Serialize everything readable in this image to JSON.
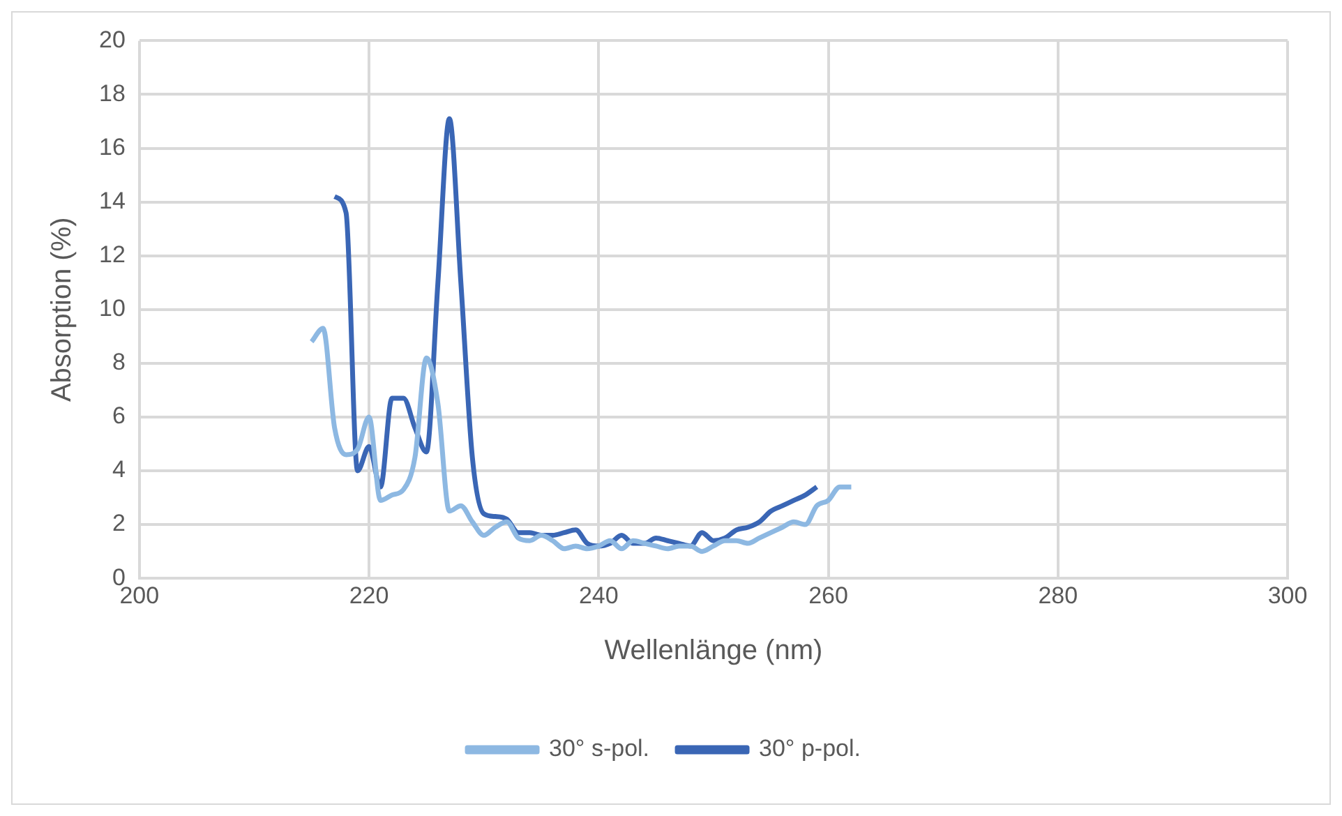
{
  "chart_data": {
    "type": "line",
    "xlabel": "Wellenlänge (nm)",
    "ylabel": "Absorption (%)",
    "xlim": [
      200,
      300
    ],
    "xticks": [
      200,
      220,
      240,
      260,
      280,
      300
    ],
    "ylim": [
      0,
      20
    ],
    "yticks": [
      0,
      2,
      4,
      6,
      8,
      10,
      12,
      14,
      16,
      18,
      20
    ],
    "grid": true,
    "legend": "bottom",
    "marker": "none",
    "series": [
      {
        "name": "30° s-pol.",
        "color": "#8db8e2",
        "x": [
          215,
          216,
          217,
          218,
          219,
          220,
          221,
          222,
          223,
          224,
          225,
          226,
          227,
          228,
          229,
          230,
          231,
          232,
          233,
          234,
          235,
          236,
          237,
          238,
          239,
          240,
          241,
          242,
          243,
          244,
          245,
          246,
          247,
          248,
          249,
          250,
          251,
          252,
          253,
          254,
          255,
          256,
          257,
          258,
          259,
          260,
          261,
          262
        ],
        "values": [
          8.8,
          9.3,
          5.6,
          4.6,
          4.8,
          6.0,
          2.9,
          3.1,
          3.3,
          4.5,
          8.2,
          6.5,
          2.5,
          2.7,
          2.1,
          1.6,
          1.9,
          2.1,
          1.5,
          1.4,
          1.6,
          1.4,
          1.1,
          1.2,
          1.1,
          1.2,
          1.4,
          1.1,
          1.4,
          1.3,
          1.2,
          1.1,
          1.2,
          1.2,
          1.0,
          1.2,
          1.4,
          1.4,
          1.3,
          1.5,
          1.7,
          1.9,
          2.1,
          2.0,
          2.7,
          2.9,
          3.4,
          3.4
        ]
      },
      {
        "name": "30° p-pol.",
        "color": "#3a66b5",
        "x": [
          217,
          218,
          219,
          220,
          221,
          222,
          223,
          224,
          225,
          226,
          227,
          228,
          229,
          230,
          231,
          232,
          233,
          234,
          235,
          236,
          237,
          238,
          239,
          240,
          241,
          242,
          243,
          244,
          245,
          246,
          247,
          248,
          249,
          250,
          251,
          252,
          253,
          254,
          255,
          256,
          257,
          258,
          259
        ],
        "values": [
          14.2,
          13.6,
          4.0,
          4.9,
          3.4,
          6.7,
          6.7,
          5.6,
          4.7,
          11,
          17.1,
          11,
          4.5,
          2.4,
          2.3,
          2.2,
          1.7,
          1.7,
          1.6,
          1.6,
          1.7,
          1.8,
          1.3,
          1.2,
          1.3,
          1.6,
          1.3,
          1.3,
          1.5,
          1.4,
          1.3,
          1.2,
          1.7,
          1.4,
          1.5,
          1.8,
          1.9,
          2.1,
          2.5,
          2.7,
          2.9,
          3.1,
          3.4
        ]
      }
    ]
  }
}
